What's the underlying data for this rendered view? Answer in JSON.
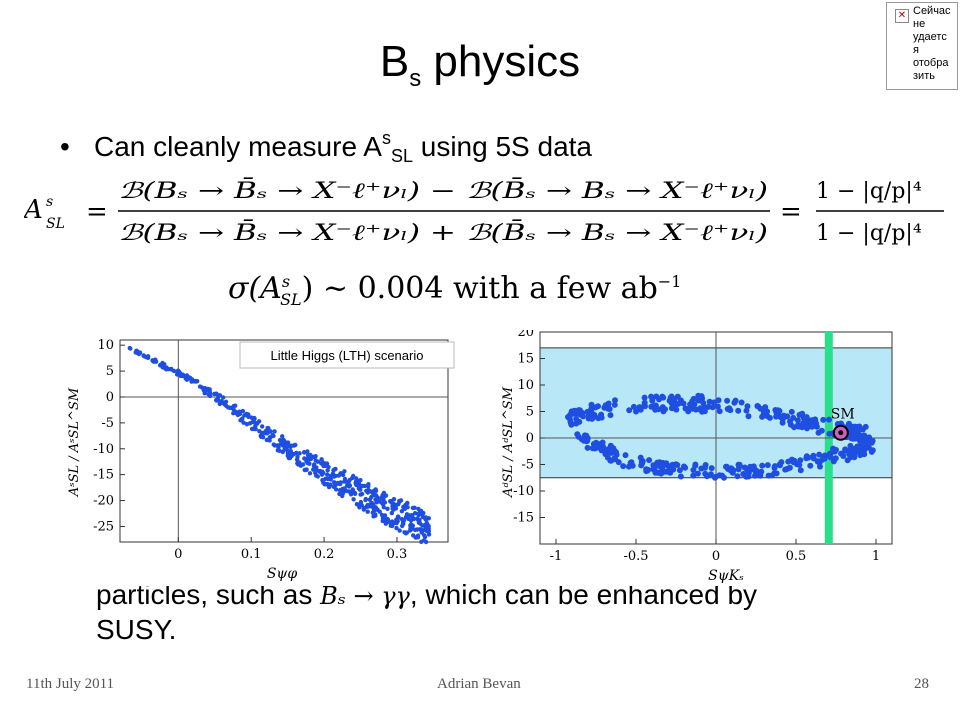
{
  "title": {
    "main": "B",
    "sub": "s",
    "rest": " physics"
  },
  "bullet1": {
    "pre": "Can cleanly measure A",
    "sup": "s",
    "sub": "SL",
    "post": " using 5S data"
  },
  "formula": {
    "lhs": "A",
    "lhs_sup": "s",
    "lhs_sub": "SL",
    "numerator": "ℬ(Bₛ → B̄ₛ → X⁻ℓ⁺νₗ) − ℬ(B̄ₛ → Bₛ → X⁻ℓ⁺νₗ)",
    "denominator": "ℬ(Bₛ → B̄ₛ → X⁻ℓ⁺νₗ) + ℬ(B̄ₛ → Bₛ → X⁻ℓ⁺νₗ)",
    "rhs_num": "1 − |q/p|⁴",
    "rhs_den": "1 − |q/p|⁴"
  },
  "sigma": {
    "lhs": "σ(A",
    "sup": "s",
    "sub": "SL",
    "rest": ") ~ 0.004 with a few ab",
    "exp": "−1"
  },
  "bullet2": {
    "l1_pre": "particles, such as ",
    "l1_math": "Bₛ → γγ",
    "l1_post": ", which can be enhanced by",
    "l2": "SUSY."
  },
  "footer": {
    "date": "11th July 2011",
    "author": "Adrian Bevan",
    "page": "28"
  },
  "widget": {
    "text": "Сейчас не удаетс я отобра зить"
  },
  "colors": {
    "points": "#1f4fe0",
    "band": "#b8e8f8",
    "green": "#28e08c",
    "sm_marker": "#d060c0"
  },
  "chart_data": [
    {
      "type": "scatter",
      "title": "",
      "annotation": "Little Higgs (LTH) scenario",
      "xlabel": "Sψφ",
      "ylabel": "AˢSL / AˢSL^SM",
      "xlim": [
        -0.08,
        0.37
      ],
      "ylim": [
        -28,
        11
      ],
      "xticks": [
        "0",
        "0.1",
        "0.2",
        "0.3"
      ],
      "xtick_values": [
        0,
        0.1,
        0.2,
        0.3
      ],
      "yticks": [
        "10",
        "5",
        "0",
        "-5",
        "-10",
        "-15",
        "-20",
        "-25"
      ],
      "ytick_values": [
        10,
        5,
        0,
        -5,
        -10,
        -15,
        -20,
        -25
      ],
      "grid_lines": {
        "x": 0,
        "y": 0
      },
      "series": [
        {
          "x": [
            -0.07,
            -0.05,
            -0.03,
            -0.01,
            0.01,
            0.03,
            0.05,
            0.07,
            0.09,
            0.11,
            0.13,
            0.15,
            0.17,
            0.19,
            0.21,
            0.23,
            0.25,
            0.27,
            0.29,
            0.31,
            0.33,
            0.345
          ],
          "y": [
            9.5,
            8.2,
            6.8,
            5.3,
            3.8,
            2.0,
            0.2,
            -1.8,
            -3.9,
            -6.0,
            -8.0,
            -10.0,
            -11.8,
            -13.6,
            -15.4,
            -17.1,
            -18.7,
            -20.3,
            -21.8,
            -23.2,
            -24.6,
            -25.6
          ],
          "spread": [
            0.2,
            0.3,
            0.4,
            0.5,
            0.6,
            0.7,
            0.8,
            1.0,
            1.2,
            1.4,
            1.6,
            1.8,
            2.0,
            2.2,
            2.4,
            2.6,
            2.8,
            3.0,
            3.1,
            3.2,
            3.2,
            3.0
          ]
        }
      ]
    },
    {
      "type": "scatter",
      "title": "",
      "xlabel": "SψKₛ",
      "ylabel": "AᵈSL / AᵈSL^SM",
      "xlim": [
        -1.1,
        1.1
      ],
      "ylim": [
        -20,
        20
      ],
      "xticks": [
        "-1",
        "-0.5",
        "0",
        "0.5",
        "1"
      ],
      "xtick_values": [
        -1,
        -0.5,
        0,
        0.5,
        1
      ],
      "yticks": [
        "20",
        "15",
        "10",
        "5",
        "0",
        "-5",
        "-10",
        "-15"
      ],
      "ytick_values": [
        20,
        15,
        10,
        5,
        0,
        -5,
        -10,
        -15
      ],
      "band_y": [
        -7.5,
        17
      ],
      "green_band_x": [
        0.68,
        0.73
      ],
      "sm_point": {
        "x": 0.78,
        "y": 1.0,
        "label": "SM"
      },
      "upper_arc": {
        "x": [
          -0.92,
          -0.7,
          -0.4,
          -0.1,
          0.2,
          0.5,
          0.8,
          0.95
        ],
        "y": [
          3.5,
          5.5,
          6.5,
          6.5,
          5.5,
          3.5,
          1.5,
          0.5
        ]
      },
      "lower_arc": {
        "x": [
          -0.85,
          -0.6,
          -0.3,
          0.0,
          0.3,
          0.6,
          0.85,
          0.98
        ],
        "y": [
          0.2,
          -4.0,
          -6.0,
          -6.5,
          -6.0,
          -4.5,
          -2.5,
          -1.0
        ]
      }
    }
  ]
}
